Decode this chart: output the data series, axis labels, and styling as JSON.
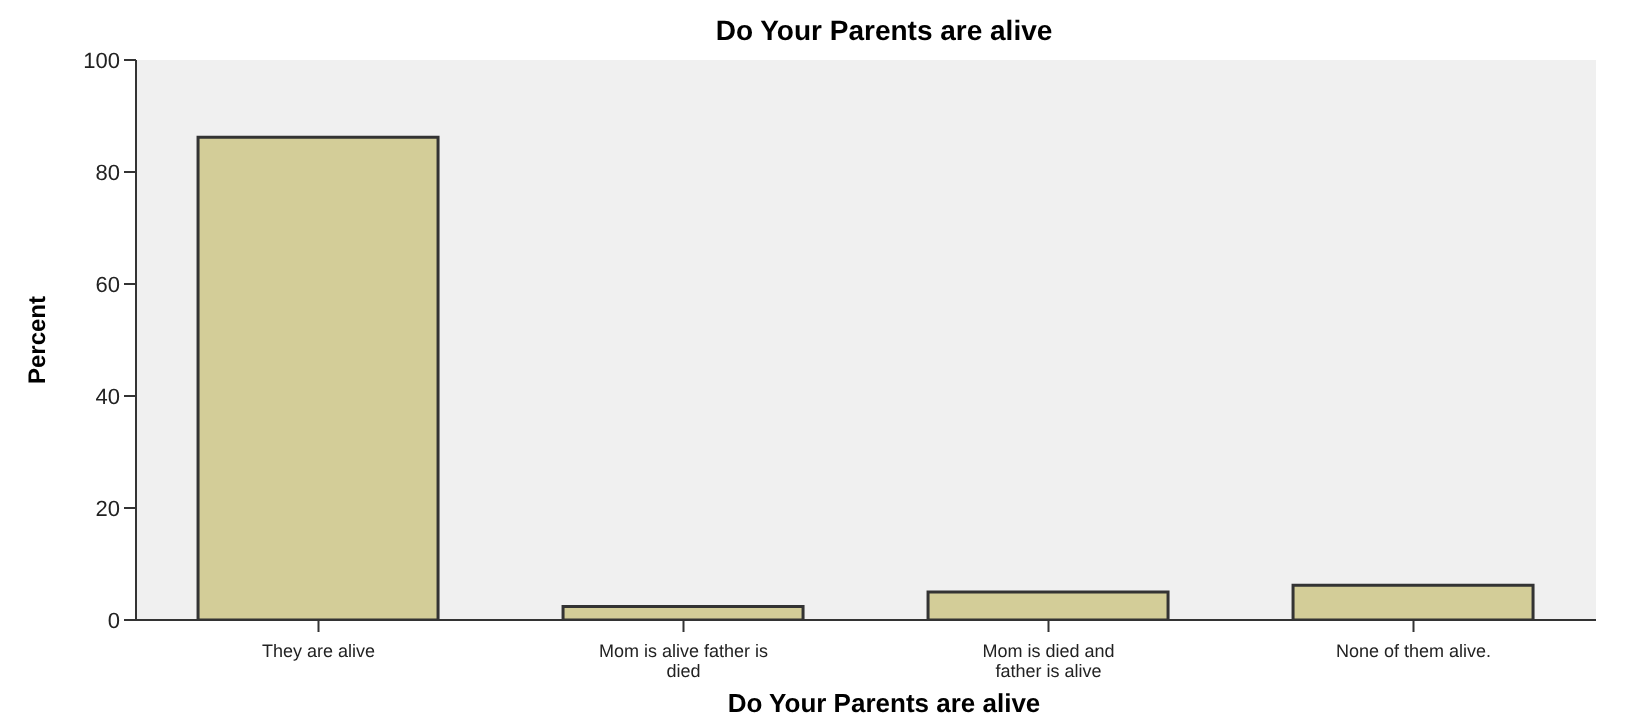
{
  "chart_data": {
    "type": "bar",
    "title": "Do Your Parents are alive",
    "xlabel": "Do Your Parents are alive",
    "ylabel": "Percent",
    "categories": [
      "They are alive",
      "Mom is alive father is died",
      "Mom is died and father is alive",
      "None of them alive."
    ],
    "values": [
      86.2,
      2.4,
      5.0,
      6.2
    ],
    "color": "#d3cd98",
    "ylim": [
      0,
      100
    ],
    "yticks": [
      0,
      20,
      40,
      60,
      80,
      100
    ],
    "grid": false,
    "legend": false
  }
}
